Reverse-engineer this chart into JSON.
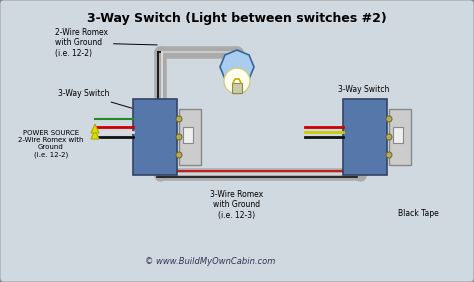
{
  "title": "3-Way Switch (Light between switches #2)",
  "bg_color": "#d0d8e0",
  "border_color": "#888888",
  "website": "© www.BuildMyOwnCabin.com",
  "labels": {
    "romex_2wire_top": "2-Wire Romex\nwith Ground\n(i.e. 12-2)",
    "switch_left_label": "3-Way Switch",
    "power_source": "POWER SOURCE\n2-Wire Romex with\nGround\n(i.e. 12-2)",
    "romex_3wire": "3-Wire Romex\nwith Ground\n(i.e. 12-3)",
    "switch_right_label": "3-Way Switch",
    "black_tape": "Black Tape"
  },
  "wire_colors": {
    "black": "#111111",
    "white": "#dddddd",
    "red": "#cc0000",
    "green": "#228B22",
    "yellow": "#cccc00",
    "gray": "#999999"
  },
  "conduit_color": "#aaaaaa",
  "switch_box_color": "#5577aa",
  "light_fixture_color": "#aaccee",
  "bulb_color": "#fffff0"
}
